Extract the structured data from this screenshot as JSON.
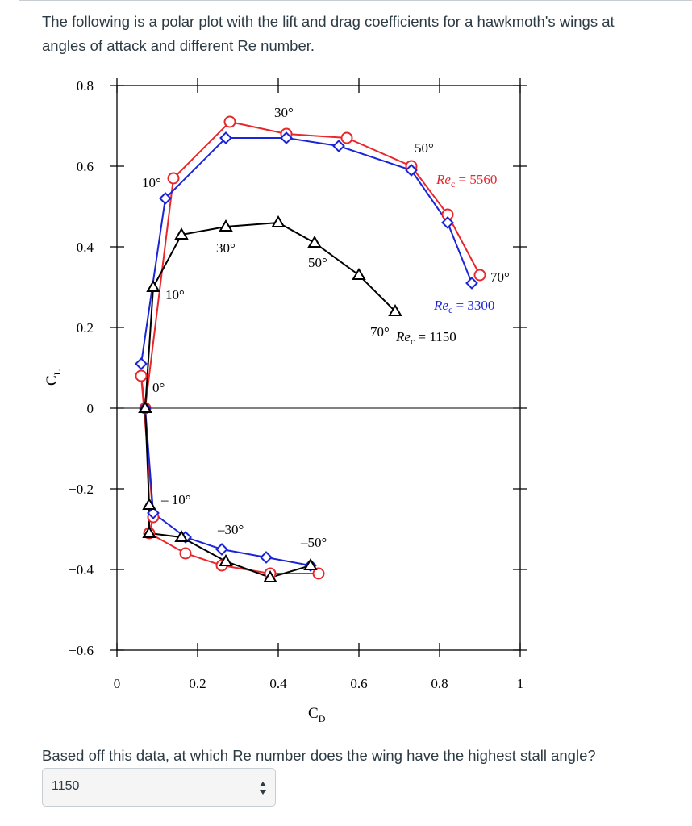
{
  "question": {
    "intro_line1": "The following is a polar plot with the lift and drag coefficients for a hawkmoth's wings at",
    "intro_line2": "angles of attack and different Re number.",
    "followup": "Based off this data, at which Re number does the wing have the highest stall angle?"
  },
  "answer_select": {
    "selected": "1150",
    "icon": "up-down-arrows-icon"
  },
  "chart_data": {
    "type": "scatter",
    "xlabel_main": "C",
    "xlabel_sub": "D",
    "ylabel_main": "C",
    "ylabel_sub": "L",
    "xlim": [
      0,
      1
    ],
    "ylim": [
      -0.6,
      0.8
    ],
    "xticks": [
      0,
      0.2,
      0.4,
      0.6,
      0.8,
      1
    ],
    "xtick_labels": [
      "0",
      "0.2",
      "0.4",
      "0.6",
      "0.8",
      "1"
    ],
    "yticks": [
      0.8,
      0.6,
      0.4,
      0.2,
      0,
      -0.2,
      -0.4,
      -0.6
    ],
    "ytick_labels": [
      "0.8",
      "0.6",
      "0.4",
      "0.2",
      "0",
      "−0.2",
      "−0.4",
      "−0.6"
    ],
    "zero_line": true,
    "series": [
      {
        "name": "Re_c = 5560",
        "color": "#e8262b",
        "marker": "circle",
        "x": [
          0.08,
          0.09,
          0.06,
          0.07,
          0.14,
          0.28,
          0.42,
          0.57,
          0.73,
          0.82,
          0.9,
          0.17,
          0.26,
          0.38,
          0.5
        ],
        "y": [
          -0.31,
          -0.27,
          0.08,
          0.0,
          0.57,
          0.71,
          0.68,
          0.67,
          0.6,
          0.48,
          0.33,
          -0.36,
          -0.39,
          -0.41,
          -0.41
        ]
      },
      {
        "name": "Re_c = 3300",
        "color": "#1a25d6",
        "marker": "diamond",
        "x": [
          0.06,
          0.12,
          0.27,
          0.42,
          0.55,
          0.73,
          0.82,
          0.88
        ],
        "y": [
          0.11,
          0.52,
          0.67,
          0.67,
          0.65,
          0.59,
          0.46,
          0.31
        ]
      },
      {
        "name": "Re_c = 3300 (negative)",
        "color": "#1a25d6",
        "marker": "diamond",
        "x": [
          0.07,
          0.09,
          0.17,
          0.26,
          0.37,
          0.48
        ],
        "y": [
          -0.0,
          -0.26,
          -0.32,
          -0.35,
          -0.37,
          -0.39
        ]
      },
      {
        "name": "Re_c = 1150",
        "color": "#000000",
        "marker": "triangle",
        "x": [
          0.07,
          0.09,
          0.16,
          0.27,
          0.4,
          0.49,
          0.6,
          0.69
        ],
        "y": [
          0.0,
          0.3,
          0.43,
          0.45,
          0.46,
          0.41,
          0.33,
          0.24
        ]
      },
      {
        "name": "Re_c = 1150 (negative)",
        "color": "#000000",
        "marker": "triangle",
        "x": [
          0.07,
          0.08,
          0.08,
          0.16,
          0.27,
          0.38,
          0.48
        ],
        "y": [
          0.0,
          -0.24,
          -0.31,
          -0.32,
          -0.38,
          -0.42,
          -0.39
        ]
      }
    ],
    "annotations": {
      "angle_30_top": "30°",
      "angle_50_top": "50°",
      "angle_10_red": "10°",
      "re_5560": "Re",
      "re_5560_sub": "c",
      "re_5560_value": " = 5560",
      "angle_30_black": "30°",
      "angle_50_black": "50°",
      "angle_70_blue": "70°",
      "angle_10_black": "10°",
      "re_3300": "Re",
      "re_3300_sub": "c",
      "re_3300_value": " = 3300",
      "angle_70_black": "70°",
      "re_1150": "Re",
      "re_1150_sub": "c",
      "re_1150_value": " = 1150",
      "angle_0": "0°",
      "angle_neg10": "– 10°",
      "angle_neg30": "–30°",
      "angle_neg50": "–50°"
    }
  }
}
